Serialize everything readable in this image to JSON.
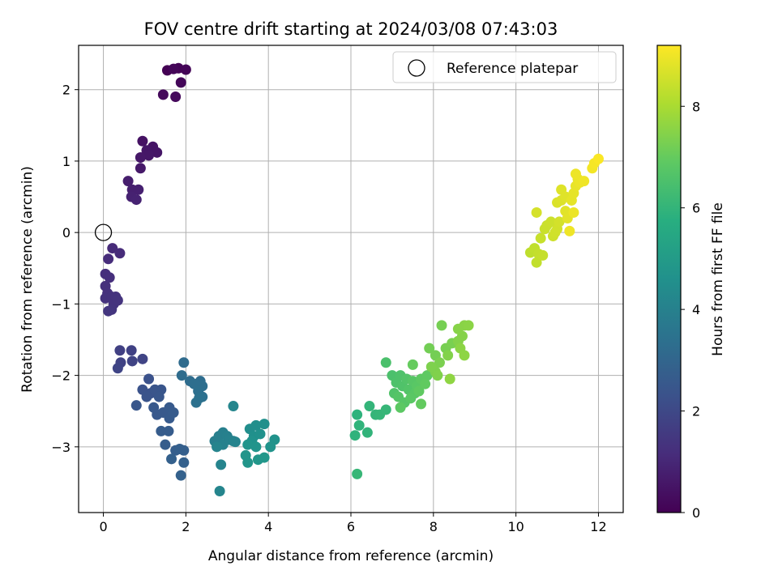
{
  "chart_data": {
    "type": "scatter",
    "title": "FOV centre drift starting at 2024/03/08 07:43:03",
    "xlabel": "Angular distance from reference (arcmin)",
    "ylabel": "Rotation from reference (arcmin)",
    "xlim": [
      -0.6,
      12.6
    ],
    "ylim": [
      -3.92,
      2.62
    ],
    "xticks": [
      0,
      2,
      4,
      6,
      8,
      10,
      12
    ],
    "yticks": [
      -3,
      -2,
      -1,
      0,
      1,
      2
    ],
    "grid": true,
    "legend": {
      "position": "top-right",
      "entries": [
        "Reference platepar"
      ]
    },
    "reference_point": {
      "x": 0,
      "y": 0
    },
    "colorbar": {
      "label": "Hours from first FF file",
      "min": 0,
      "max": 9.2,
      "ticks": [
        0,
        2,
        4,
        6,
        8
      ],
      "colormap": "viridis"
    },
    "series": [
      {
        "values": [
          {
            "x": 1.55,
            "y": 2.27,
            "c": 0.0
          },
          {
            "x": 1.82,
            "y": 2.3,
            "c": 0.05
          },
          {
            "x": 2.0,
            "y": 2.28,
            "c": 0.1
          },
          {
            "x": 1.7,
            "y": 2.29,
            "c": 0.12
          },
          {
            "x": 1.88,
            "y": 2.1,
            "c": 0.15
          },
          {
            "x": 1.45,
            "y": 1.93,
            "c": 0.2
          },
          {
            "x": 1.75,
            "y": 1.9,
            "c": 0.22
          },
          {
            "x": 0.95,
            "y": 1.28,
            "c": 0.45
          },
          {
            "x": 1.2,
            "y": 1.2,
            "c": 0.5
          },
          {
            "x": 1.3,
            "y": 1.12,
            "c": 0.52
          },
          {
            "x": 1.05,
            "y": 1.15,
            "c": 0.55
          },
          {
            "x": 1.1,
            "y": 1.08,
            "c": 0.57
          },
          {
            "x": 0.9,
            "y": 1.05,
            "c": 0.6
          },
          {
            "x": 0.9,
            "y": 0.9,
            "c": 0.63
          },
          {
            "x": 0.6,
            "y": 0.72,
            "c": 0.75
          },
          {
            "x": 0.7,
            "y": 0.6,
            "c": 0.8
          },
          {
            "x": 0.85,
            "y": 0.6,
            "c": 0.82
          },
          {
            "x": 0.68,
            "y": 0.5,
            "c": 0.85
          },
          {
            "x": 0.8,
            "y": 0.46,
            "c": 0.88
          },
          {
            "x": 0.22,
            "y": -0.22,
            "c": 1.1
          },
          {
            "x": 0.4,
            "y": -0.29,
            "c": 1.12
          },
          {
            "x": 0.12,
            "y": -0.37,
            "c": 1.15
          },
          {
            "x": 0.05,
            "y": -0.58,
            "c": 1.2
          },
          {
            "x": 0.15,
            "y": -0.63,
            "c": 1.22
          },
          {
            "x": 0.05,
            "y": -0.75,
            "c": 1.25
          },
          {
            "x": 0.1,
            "y": -0.85,
            "c": 1.27
          },
          {
            "x": 0.05,
            "y": -0.92,
            "c": 1.3
          },
          {
            "x": 0.2,
            "y": -0.9,
            "c": 1.32
          },
          {
            "x": 0.3,
            "y": -0.9,
            "c": 1.33
          },
          {
            "x": 0.25,
            "y": -1.0,
            "c": 1.35
          },
          {
            "x": 0.35,
            "y": -0.95,
            "c": 1.37
          },
          {
            "x": 0.2,
            "y": -1.08,
            "c": 1.4
          },
          {
            "x": 0.12,
            "y": -1.1,
            "c": 1.42
          },
          {
            "x": 0.4,
            "y": -1.65,
            "c": 1.75
          },
          {
            "x": 0.68,
            "y": -1.65,
            "c": 1.78
          },
          {
            "x": 0.42,
            "y": -1.82,
            "c": 1.8
          },
          {
            "x": 0.7,
            "y": -1.8,
            "c": 1.82
          },
          {
            "x": 0.95,
            "y": -1.77,
            "c": 1.85
          },
          {
            "x": 0.35,
            "y": -1.9,
            "c": 1.88
          },
          {
            "x": 1.1,
            "y": -2.05,
            "c": 2.3
          },
          {
            "x": 0.95,
            "y": -2.2,
            "c": 2.32
          },
          {
            "x": 1.15,
            "y": -2.25,
            "c": 2.35
          },
          {
            "x": 1.05,
            "y": -2.3,
            "c": 2.37
          },
          {
            "x": 1.25,
            "y": -2.2,
            "c": 2.4
          },
          {
            "x": 1.4,
            "y": -2.2,
            "c": 2.42
          },
          {
            "x": 1.35,
            "y": -2.3,
            "c": 2.45
          },
          {
            "x": 0.8,
            "y": -2.42,
            "c": 2.47
          },
          {
            "x": 1.22,
            "y": -2.45,
            "c": 2.5
          },
          {
            "x": 1.3,
            "y": -2.55,
            "c": 2.52
          },
          {
            "x": 1.45,
            "y": -2.52,
            "c": 2.55
          },
          {
            "x": 1.6,
            "y": -2.45,
            "c": 2.57
          },
          {
            "x": 1.6,
            "y": -2.6,
            "c": 2.6
          },
          {
            "x": 1.7,
            "y": -2.52,
            "c": 2.62
          },
          {
            "x": 1.4,
            "y": -2.78,
            "c": 2.65
          },
          {
            "x": 1.58,
            "y": -2.78,
            "c": 2.67
          },
          {
            "x": 1.5,
            "y": -2.97,
            "c": 2.7
          },
          {
            "x": 1.75,
            "y": -3.05,
            "c": 2.72
          },
          {
            "x": 1.85,
            "y": -3.03,
            "c": 2.75
          },
          {
            "x": 1.95,
            "y": -3.05,
            "c": 2.77
          },
          {
            "x": 1.65,
            "y": -3.17,
            "c": 2.8
          },
          {
            "x": 1.95,
            "y": -3.22,
            "c": 2.82
          },
          {
            "x": 1.88,
            "y": -3.4,
            "c": 2.85
          },
          {
            "x": 1.95,
            "y": -1.82,
            "c": 3.2
          },
          {
            "x": 1.9,
            "y": -2.0,
            "c": 3.22
          },
          {
            "x": 2.1,
            "y": -2.08,
            "c": 3.25
          },
          {
            "x": 2.35,
            "y": -2.08,
            "c": 3.27
          },
          {
            "x": 2.2,
            "y": -2.12,
            "c": 3.3
          },
          {
            "x": 2.4,
            "y": -2.15,
            "c": 3.32
          },
          {
            "x": 2.3,
            "y": -2.22,
            "c": 3.35
          },
          {
            "x": 2.4,
            "y": -2.3,
            "c": 3.37
          },
          {
            "x": 2.25,
            "y": -2.38,
            "c": 3.4
          },
          {
            "x": 2.32,
            "y": -2.32,
            "c": 3.42
          },
          {
            "x": 2.7,
            "y": -2.92,
            "c": 3.9
          },
          {
            "x": 2.8,
            "y": -2.85,
            "c": 3.92
          },
          {
            "x": 2.9,
            "y": -2.8,
            "c": 3.95
          },
          {
            "x": 3.0,
            "y": -2.85,
            "c": 3.97
          },
          {
            "x": 2.9,
            "y": -2.97,
            "c": 4.0
          },
          {
            "x": 3.05,
            "y": -2.9,
            "c": 4.02
          },
          {
            "x": 3.15,
            "y": -2.92,
            "c": 4.05
          },
          {
            "x": 3.2,
            "y": -2.93,
            "c": 4.07
          },
          {
            "x": 2.75,
            "y": -3.0,
            "c": 4.1
          },
          {
            "x": 2.85,
            "y": -3.25,
            "c": 4.12
          },
          {
            "x": 2.82,
            "y": -3.62,
            "c": 4.15
          },
          {
            "x": 3.15,
            "y": -2.43,
            "c": 4.18
          },
          {
            "x": 3.55,
            "y": -2.75,
            "c": 4.5
          },
          {
            "x": 3.7,
            "y": -2.7,
            "c": 4.52
          },
          {
            "x": 3.9,
            "y": -2.68,
            "c": 4.55
          },
          {
            "x": 3.65,
            "y": -2.85,
            "c": 4.57
          },
          {
            "x": 3.8,
            "y": -2.82,
            "c": 4.6
          },
          {
            "x": 3.6,
            "y": -2.92,
            "c": 4.62
          },
          {
            "x": 4.15,
            "y": -2.9,
            "c": 4.65
          },
          {
            "x": 4.05,
            "y": -3.0,
            "c": 4.67
          },
          {
            "x": 3.5,
            "y": -2.97,
            "c": 4.7
          },
          {
            "x": 3.7,
            "y": -3.0,
            "c": 4.72
          },
          {
            "x": 3.45,
            "y": -3.12,
            "c": 4.75
          },
          {
            "x": 3.5,
            "y": -3.22,
            "c": 4.77
          },
          {
            "x": 3.75,
            "y": -3.18,
            "c": 4.8
          },
          {
            "x": 3.9,
            "y": -3.15,
            "c": 4.82
          },
          {
            "x": 6.15,
            "y": -2.55,
            "c": 5.9
          },
          {
            "x": 6.1,
            "y": -2.84,
            "c": 5.92
          },
          {
            "x": 6.2,
            "y": -2.7,
            "c": 5.95
          },
          {
            "x": 6.4,
            "y": -2.8,
            "c": 5.97
          },
          {
            "x": 6.45,
            "y": -2.43,
            "c": 6.0
          },
          {
            "x": 6.6,
            "y": -2.55,
            "c": 6.02
          },
          {
            "x": 6.7,
            "y": -2.55,
            "c": 6.05
          },
          {
            "x": 6.85,
            "y": -2.48,
            "c": 6.07
          },
          {
            "x": 6.15,
            "y": -3.38,
            "c": 6.1
          },
          {
            "x": 6.85,
            "y": -1.82,
            "c": 6.5
          },
          {
            "x": 7.0,
            "y": -2.0,
            "c": 6.52
          },
          {
            "x": 7.1,
            "y": -2.1,
            "c": 6.55
          },
          {
            "x": 7.2,
            "y": -2.0,
            "c": 6.57
          },
          {
            "x": 7.25,
            "y": -2.15,
            "c": 6.6
          },
          {
            "x": 7.05,
            "y": -2.25,
            "c": 6.62
          },
          {
            "x": 7.35,
            "y": -2.05,
            "c": 6.65
          },
          {
            "x": 7.4,
            "y": -2.2,
            "c": 6.67
          },
          {
            "x": 7.15,
            "y": -2.3,
            "c": 6.7
          },
          {
            "x": 7.3,
            "y": -2.38,
            "c": 6.72
          },
          {
            "x": 7.5,
            "y": -2.08,
            "c": 6.75
          },
          {
            "x": 7.55,
            "y": -2.25,
            "c": 6.77
          },
          {
            "x": 7.6,
            "y": -2.15,
            "c": 6.8
          },
          {
            "x": 7.45,
            "y": -2.32,
            "c": 6.82
          },
          {
            "x": 7.2,
            "y": -2.45,
            "c": 6.85
          },
          {
            "x": 7.7,
            "y": -2.05,
            "c": 6.87
          },
          {
            "x": 7.85,
            "y": -2.0,
            "c": 6.9
          },
          {
            "x": 7.65,
            "y": -2.22,
            "c": 6.92
          },
          {
            "x": 7.8,
            "y": -2.12,
            "c": 6.95
          },
          {
            "x": 7.7,
            "y": -2.4,
            "c": 6.97
          },
          {
            "x": 7.5,
            "y": -1.85,
            "c": 7.0
          },
          {
            "x": 7.9,
            "y": -1.62,
            "c": 7.2
          },
          {
            "x": 8.05,
            "y": -1.72,
            "c": 7.22
          },
          {
            "x": 8.2,
            "y": -1.3,
            "c": 7.25
          },
          {
            "x": 8.3,
            "y": -1.62,
            "c": 7.27
          },
          {
            "x": 8.45,
            "y": -1.55,
            "c": 7.3
          },
          {
            "x": 8.15,
            "y": -1.82,
            "c": 7.32
          },
          {
            "x": 8.05,
            "y": -1.95,
            "c": 7.35
          },
          {
            "x": 7.95,
            "y": -1.88,
            "c": 7.37
          },
          {
            "x": 8.1,
            "y": -2.0,
            "c": 7.4
          },
          {
            "x": 8.35,
            "y": -1.72,
            "c": 7.42
          },
          {
            "x": 8.6,
            "y": -1.52,
            "c": 7.45
          },
          {
            "x": 8.7,
            "y": -1.45,
            "c": 7.47
          },
          {
            "x": 8.6,
            "y": -1.35,
            "c": 7.5
          },
          {
            "x": 8.75,
            "y": -1.3,
            "c": 7.52
          },
          {
            "x": 8.85,
            "y": -1.3,
            "c": 7.55
          },
          {
            "x": 8.65,
            "y": -1.62,
            "c": 7.57
          },
          {
            "x": 8.75,
            "y": -1.72,
            "c": 7.6
          },
          {
            "x": 8.4,
            "y": -2.05,
            "c": 7.62
          },
          {
            "x": 10.35,
            "y": -0.28,
            "c": 8.3
          },
          {
            "x": 10.45,
            "y": -0.22,
            "c": 8.32
          },
          {
            "x": 10.5,
            "y": -0.42,
            "c": 8.35
          },
          {
            "x": 10.55,
            "y": -0.3,
            "c": 8.37
          },
          {
            "x": 10.65,
            "y": -0.32,
            "c": 8.4
          },
          {
            "x": 10.6,
            "y": -0.08,
            "c": 8.42
          },
          {
            "x": 10.7,
            "y": 0.05,
            "c": 8.45
          },
          {
            "x": 10.75,
            "y": 0.1,
            "c": 8.47
          },
          {
            "x": 10.85,
            "y": 0.15,
            "c": 8.5
          },
          {
            "x": 10.9,
            "y": -0.05,
            "c": 8.52
          },
          {
            "x": 10.95,
            "y": 0.0,
            "c": 8.55
          },
          {
            "x": 11.0,
            "y": 0.05,
            "c": 8.57
          },
          {
            "x": 11.05,
            "y": 0.15,
            "c": 8.6
          },
          {
            "x": 10.5,
            "y": 0.28,
            "c": 8.62
          },
          {
            "x": 11.0,
            "y": 0.42,
            "c": 8.7
          },
          {
            "x": 11.1,
            "y": 0.45,
            "c": 8.72
          },
          {
            "x": 11.1,
            "y": 0.6,
            "c": 8.75
          },
          {
            "x": 11.2,
            "y": 0.5,
            "c": 8.77
          },
          {
            "x": 11.2,
            "y": 0.3,
            "c": 8.8
          },
          {
            "x": 11.25,
            "y": 0.2,
            "c": 8.82
          },
          {
            "x": 11.35,
            "y": 0.45,
            "c": 8.85
          },
          {
            "x": 11.4,
            "y": 0.55,
            "c": 8.87
          },
          {
            "x": 11.45,
            "y": 0.65,
            "c": 8.9
          },
          {
            "x": 11.5,
            "y": 0.75,
            "c": 8.92
          },
          {
            "x": 11.55,
            "y": 0.7,
            "c": 8.95
          },
          {
            "x": 11.45,
            "y": 0.82,
            "c": 8.97
          },
          {
            "x": 11.65,
            "y": 0.72,
            "c": 9.0
          },
          {
            "x": 11.85,
            "y": 0.9,
            "c": 9.05
          },
          {
            "x": 11.9,
            "y": 0.97,
            "c": 9.1
          },
          {
            "x": 12.0,
            "y": 1.03,
            "c": 9.15
          },
          {
            "x": 11.3,
            "y": 0.02,
            "c": 9.0
          },
          {
            "x": 11.4,
            "y": 0.28,
            "c": 8.95
          }
        ]
      }
    ]
  }
}
